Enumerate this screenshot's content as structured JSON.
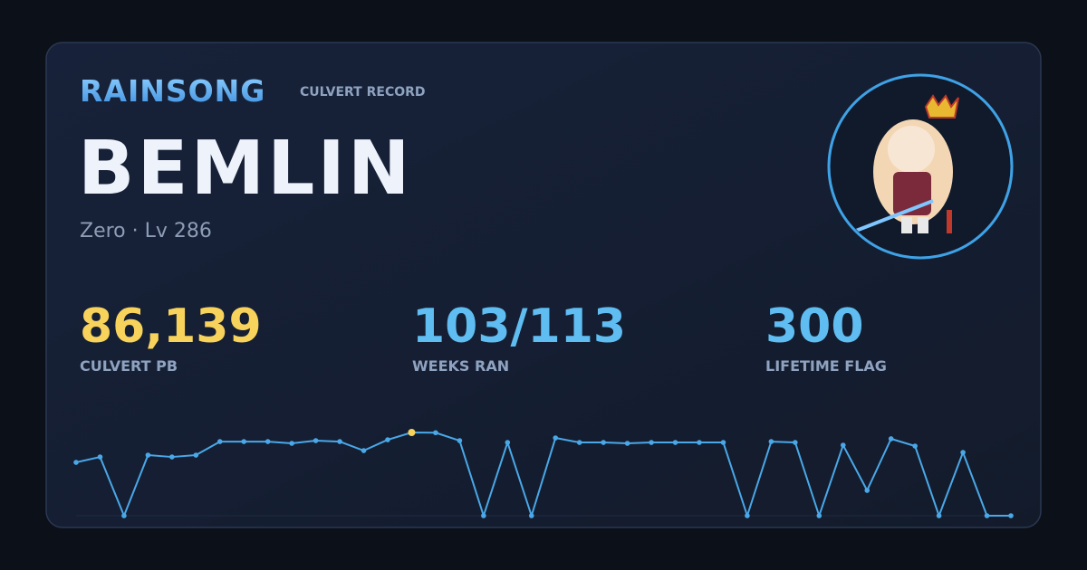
{
  "header": {
    "brand": "RAINSONG",
    "subtitle": "CULVERT RECORD"
  },
  "player": {
    "name": "BEMLIN",
    "meta": "Zero · Lv 286"
  },
  "stats": [
    {
      "value": "86,139",
      "caption": "CULVERT PB",
      "color": "#f8d35c"
    },
    {
      "value": "103/113",
      "caption": "WEEKS RAN",
      "color": "#5fbdf2"
    },
    {
      "value": "300",
      "caption": "LIFETIME FLAG",
      "color": "#5fbdf2"
    }
  ],
  "chart_data": {
    "type": "line",
    "color": "#4aa8e8",
    "highlight_color": "#f8d35c",
    "values": [
      55200,
      60800,
      0,
      62700,
      60800,
      62700,
      76700,
      76700,
      76700,
      74900,
      77700,
      76700,
      67400,
      78600,
      86139,
      85900,
      77700,
      0,
      75800,
      0,
      80500,
      75800,
      75800,
      74900,
      75800,
      75800,
      75800,
      75800,
      0,
      76700,
      75800,
      0,
      73000,
      26200,
      79600,
      72100,
      0,
      65500,
      0,
      0
    ]
  }
}
